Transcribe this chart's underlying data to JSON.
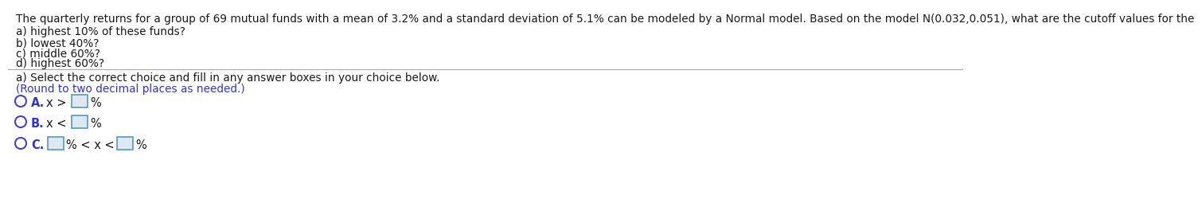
{
  "white_color": "#ffffff",
  "title_text": "The quarterly returns for a group of 69 mutual funds with a mean of 3.2% and a standard deviation of 5.1% can be modeled by a Normal model. Based on the model N(0.032,0.051), what are the cutoff values for the",
  "lines_top": [
    "a) highest 10% of these funds?",
    "b) lowest 40%?",
    "c) middle 60%?",
    "d) highest 60%?"
  ],
  "instruction_line1": "a) Select the correct choice and fill in any answer boxes in your choice below.",
  "instruction_line2": "(Round to two decimal places as needed.)",
  "text_color": "#1a1a1a",
  "blue_color": "#3333cc",
  "circle_color": "#4444cc",
  "box_fill_color": "#dde8f0",
  "box_edge_color": "#5599bb",
  "separator_color": "#aaaaaa",
  "font_size_title": 9.8,
  "font_size_body": 9.8,
  "font_size_options": 10.5,
  "font_size_label_bold": 10.5
}
